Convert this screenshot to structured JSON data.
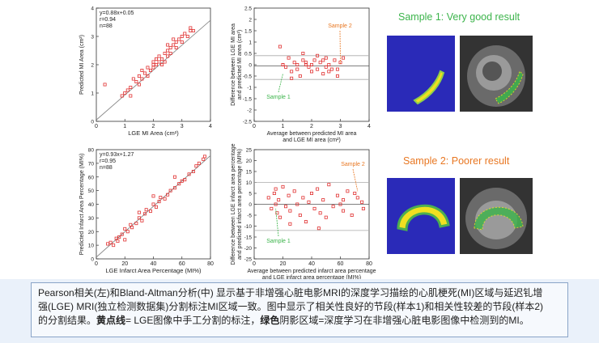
{
  "chart_data": [
    {
      "type": "scatter",
      "xlabel": "LGE MI Area (cm²)",
      "ylabel": "Predicted MI Area (cm²)",
      "xlim": [
        0,
        4
      ],
      "ylim": [
        0,
        4
      ],
      "xticks": [
        "0",
        "1",
        "2",
        "3",
        "4"
      ],
      "yticks": [
        "0",
        "1",
        "2",
        "3",
        "4"
      ],
      "annotations": [
        "y=0.88x+0.05",
        "r=0.94",
        "n=88"
      ],
      "fit": {
        "slope": 0.88,
        "intercept": 0.05
      },
      "x": [
        0.3,
        0.9,
        1.0,
        1.1,
        1.2,
        1.3,
        1.4,
        1.5,
        1.5,
        1.6,
        1.7,
        1.8,
        1.8,
        1.9,
        2.0,
        2.0,
        2.1,
        2.1,
        2.2,
        2.2,
        2.3,
        2.3,
        2.4,
        2.4,
        2.5,
        2.5,
        2.6,
        2.6,
        2.7,
        2.7,
        2.8,
        2.8,
        2.9,
        3.0,
        3.0,
        3.1,
        3.2,
        3.3,
        3.3,
        3.4,
        1.2,
        1.6,
        2.0,
        2.5
      ],
      "y": [
        1.3,
        0.9,
        1.0,
        1.1,
        0.9,
        1.5,
        1.4,
        1.3,
        1.6,
        1.5,
        1.7,
        1.6,
        1.9,
        1.8,
        1.9,
        2.1,
        2.0,
        2.2,
        2.1,
        2.3,
        2.0,
        2.2,
        2.4,
        2.1,
        2.3,
        2.5,
        2.6,
        2.4,
        2.7,
        2.9,
        2.8,
        2.6,
        2.9,
        3.0,
        2.8,
        3.1,
        3.0,
        3.2,
        3.3,
        3.2,
        1.2,
        1.8,
        2.0,
        2.7
      ]
    },
    {
      "type": "scatter",
      "xlabel": "Average between predicted MI area and LGE MI area (cm²)",
      "ylabel": "Difference between LGE MI area and predicted MI area (cm²)",
      "xlim": [
        0,
        4
      ],
      "ylim": [
        -2.5,
        2.5
      ],
      "xticks": [
        "0",
        "1",
        "2",
        "3",
        "4"
      ],
      "yticks": [
        "-2.5",
        "-2",
        "-1.5",
        "-1",
        "-0.5",
        "0",
        "0.5",
        "1",
        "1.5",
        "2",
        "2.5"
      ],
      "hlines": [
        0.4,
        -0.05,
        -0.65
      ],
      "annotations": [
        "Sample 1",
        "Sample 2"
      ],
      "x": [
        0.9,
        1.0,
        1.1,
        1.2,
        1.3,
        1.4,
        1.5,
        1.5,
        1.6,
        1.7,
        1.8,
        1.9,
        2.0,
        2.0,
        2.1,
        2.2,
        2.3,
        2.4,
        2.5,
        2.5,
        2.6,
        2.7,
        2.8,
        2.9,
        3.0,
        3.1,
        1.3,
        1.7,
        2.2,
        2.6,
        1.0,
        2.9,
        1.8,
        2.4
      ],
      "y": [
        0.8,
        0.0,
        -0.1,
        0.3,
        -0.3,
        0.1,
        0.0,
        -0.2,
        -0.5,
        0.2,
        0.1,
        -0.1,
        0.0,
        -0.3,
        0.2,
        -0.2,
        0.1,
        -0.4,
        0.3,
        -0.1,
        0.0,
        -0.2,
        0.2,
        -0.5,
        0.1,
        0.3,
        -0.6,
        0.5,
        0.4,
        -0.3,
        0.0,
        -0.2,
        0.0,
        0.2
      ]
    },
    {
      "type": "scatter",
      "xlabel": "LGE Infarct Area Percentage (MI%)",
      "ylabel": "Predicted Infarct Area Percentage (MI%)",
      "xlim": [
        0,
        80
      ],
      "ylim": [
        0,
        80
      ],
      "xticks": [
        "0",
        "20",
        "40",
        "60",
        "80"
      ],
      "yticks": [
        "0",
        "10",
        "20",
        "30",
        "40",
        "50",
        "60",
        "70",
        "80"
      ],
      "annotations": [
        "y=0.93x+1.27",
        "r=0.95",
        "n=88"
      ],
      "fit": {
        "slope": 0.93,
        "intercept": 1.27
      },
      "x": [
        8,
        10,
        12,
        14,
        15,
        16,
        18,
        20,
        22,
        24,
        25,
        28,
        30,
        32,
        34,
        35,
        38,
        40,
        42,
        44,
        45,
        48,
        50,
        52,
        55,
        58,
        60,
        62,
        65,
        68,
        70,
        72,
        75,
        76,
        20,
        30,
        40,
        55
      ],
      "y": [
        11,
        12,
        10,
        15,
        13,
        16,
        18,
        22,
        20,
        25,
        23,
        26,
        30,
        28,
        33,
        36,
        35,
        40,
        38,
        42,
        45,
        44,
        47,
        50,
        52,
        55,
        57,
        58,
        62,
        64,
        68,
        70,
        73,
        75,
        14,
        34,
        46,
        60
      ]
    },
    {
      "type": "scatter",
      "xlabel": "Average between predicted infarct area percentage and LGE infarct area percentage (MI%)",
      "ylabel": "Difference between LGE infarct area percentage and predicted infarct area percentage (MI%)",
      "xlim": [
        0,
        80
      ],
      "ylim": [
        -25,
        25
      ],
      "xticks": [
        "0",
        "20",
        "40",
        "60",
        "80"
      ],
      "yticks": [
        "-25",
        "-20",
        "-15",
        "-10",
        "-5",
        "0",
        "5",
        "10",
        "15",
        "20",
        "25"
      ],
      "hlines": [
        10,
        0,
        -12
      ],
      "annotations": [
        "Sample 1",
        "Sample 2"
      ],
      "x": [
        10,
        12,
        14,
        15,
        16,
        17,
        18,
        20,
        22,
        24,
        25,
        28,
        30,
        32,
        34,
        36,
        38,
        40,
        42,
        44,
        46,
        48,
        50,
        52,
        55,
        58,
        60,
        62,
        65,
        68,
        70,
        72,
        75,
        76,
        15,
        25,
        45,
        62
      ],
      "y": [
        3,
        -2,
        5,
        0,
        -4,
        2,
        -6,
        8,
        -1,
        4,
        -3,
        6,
        0,
        -5,
        3,
        -8,
        1,
        5,
        -2,
        7,
        -4,
        2,
        -6,
        9,
        -1,
        4,
        0,
        -3,
        6,
        -5,
        5,
        3,
        1,
        -2,
        7,
        -9,
        -11,
        2
      ]
    }
  ],
  "samples": {
    "sample1_title": "Sample 1: Very good result",
    "sample2_title": "Sample 2: Poorer result"
  },
  "colors": {
    "marker": "#e03030",
    "sample1": "#3cb44b",
    "sample2": "#e87722",
    "blue_bg": "#2a2ab8",
    "mask_yellow": "#f0e020",
    "mask_green": "#4caf50"
  },
  "caption": {
    "line1": "Pearson相关(左)和Bland-Altman分析(中) 显示基于非增强心脏电影MRI的深度学习描绘的心肌梗死(MI)区域与延迟钆增",
    "line2": "强(LGE) MRI(独立检测数据集)分割标注MI区域一致。图中显示了相关性良好的节段(样本1)和相关性较差的节段(样本2)",
    "line3_a": "的分割结果。",
    "line3_b": "黄点线",
    "line3_c": "= LGE图像中手工分割的标注，",
    "line3_d": "绿色",
    "line3_e": "阴影区域=深度学习在非增强心脏电影图像中检测到的MI。"
  }
}
